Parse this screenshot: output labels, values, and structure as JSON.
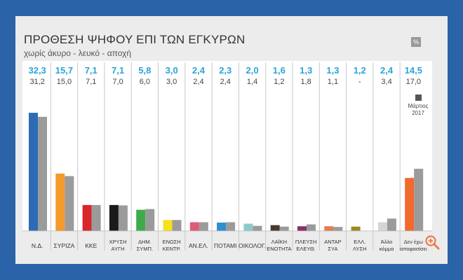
{
  "card": {
    "title": "ΠΡΟΘΕΣΗ ΨΗΦΟΥ ΕΠΙ ΤΩΝ ΕΓΚΥΡΩΝ",
    "subtitle": "χωρίς άκυρο - λευκό - αποχή",
    "percent_badge": "%"
  },
  "chart_data": {
    "type": "bar",
    "title": "ΠΡΟΘΕΣΗ ΨΗΦΟΥ ΕΠΙ ΤΩΝ ΕΓΚΥΡΩΝ",
    "subtitle": "χωρίς άκυρο - λευκό - αποχή",
    "categories": [
      [
        "Ν.Δ."
      ],
      [
        "ΣΥΡΙΖΑ"
      ],
      [
        "ΚΚΕ"
      ],
      [
        "ΧΡΥΣΗ",
        "ΑΥΓΗ"
      ],
      [
        "ΔΗΜ.",
        "ΣΥΜΠ."
      ],
      [
        "ΕΝΩΣΗ",
        "ΚΕΝΤΡ."
      ],
      [
        "ΑΝ.ΕΛ."
      ],
      [
        "ΠΟΤΑΜΙ"
      ],
      [
        "ΟΙΚΟΛΟΓ."
      ],
      [
        "ΛΑΪΚΗ",
        "ΕΝΟΤΗΤΑ"
      ],
      [
        "ΠΛΕΥΣΗ",
        "ΕΛΕΥΘ."
      ],
      [
        "ΑΝΤΑΡ",
        "ΣΥΑ"
      ],
      [
        "ΕΛΛ.",
        "ΛΥΣΗ"
      ],
      [
        "Άλλο",
        "κόμμα"
      ],
      [
        "Δεν έχω",
        "αποφασίσει"
      ]
    ],
    "series": [
      {
        "values": [
          32.3,
          15.7,
          7.1,
          7.1,
          5.8,
          3.0,
          2.4,
          2.3,
          2.0,
          1.6,
          1.3,
          1.3,
          1.2,
          2.4,
          14.5
        ],
        "labels": [
          "32,3",
          "15,7",
          "7,1",
          "7,1",
          "5,8",
          "3,0",
          "2,4",
          "2,3",
          "2,0",
          "1,6",
          "1,3",
          "1,3",
          "1,2",
          "2,4",
          "14,5"
        ],
        "colors": [
          "#2d6cb5",
          "#f49a2c",
          "#d8262b",
          "#1a1a1a",
          "#3faa4a",
          "#f4e21a",
          "#e05a73",
          "#2f8fd0",
          "#8fcac6",
          "#4a3632",
          "#8a2f6e",
          "#e27c52",
          "#9c8a22",
          "#d5d5d5",
          "#f26a2e"
        ],
        "label_color": "#2aa3dc"
      },
      {
        "name": "Μάρτιος 2017",
        "values": [
          31.2,
          15.0,
          7.1,
          7.0,
          6.0,
          3.0,
          2.4,
          2.4,
          1.4,
          1.2,
          1.8,
          1.1,
          null,
          3.4,
          17.0
        ],
        "labels": [
          "31,2",
          "15,0",
          "7,1",
          "7,0",
          "6,0",
          "3,0",
          "2,4",
          "2,4",
          "1,4",
          "1,2",
          "1,8",
          "1,1",
          "-",
          "3,4",
          "17,0"
        ],
        "color": "#9b9b9b",
        "label_color": "#444444"
      }
    ],
    "legend": {
      "entries": [
        [
          "Μάρτιος",
          "2017"
        ]
      ],
      "placement": "top-right",
      "swatch": "#555555"
    },
    "ylim": [
      0,
      35
    ]
  }
}
